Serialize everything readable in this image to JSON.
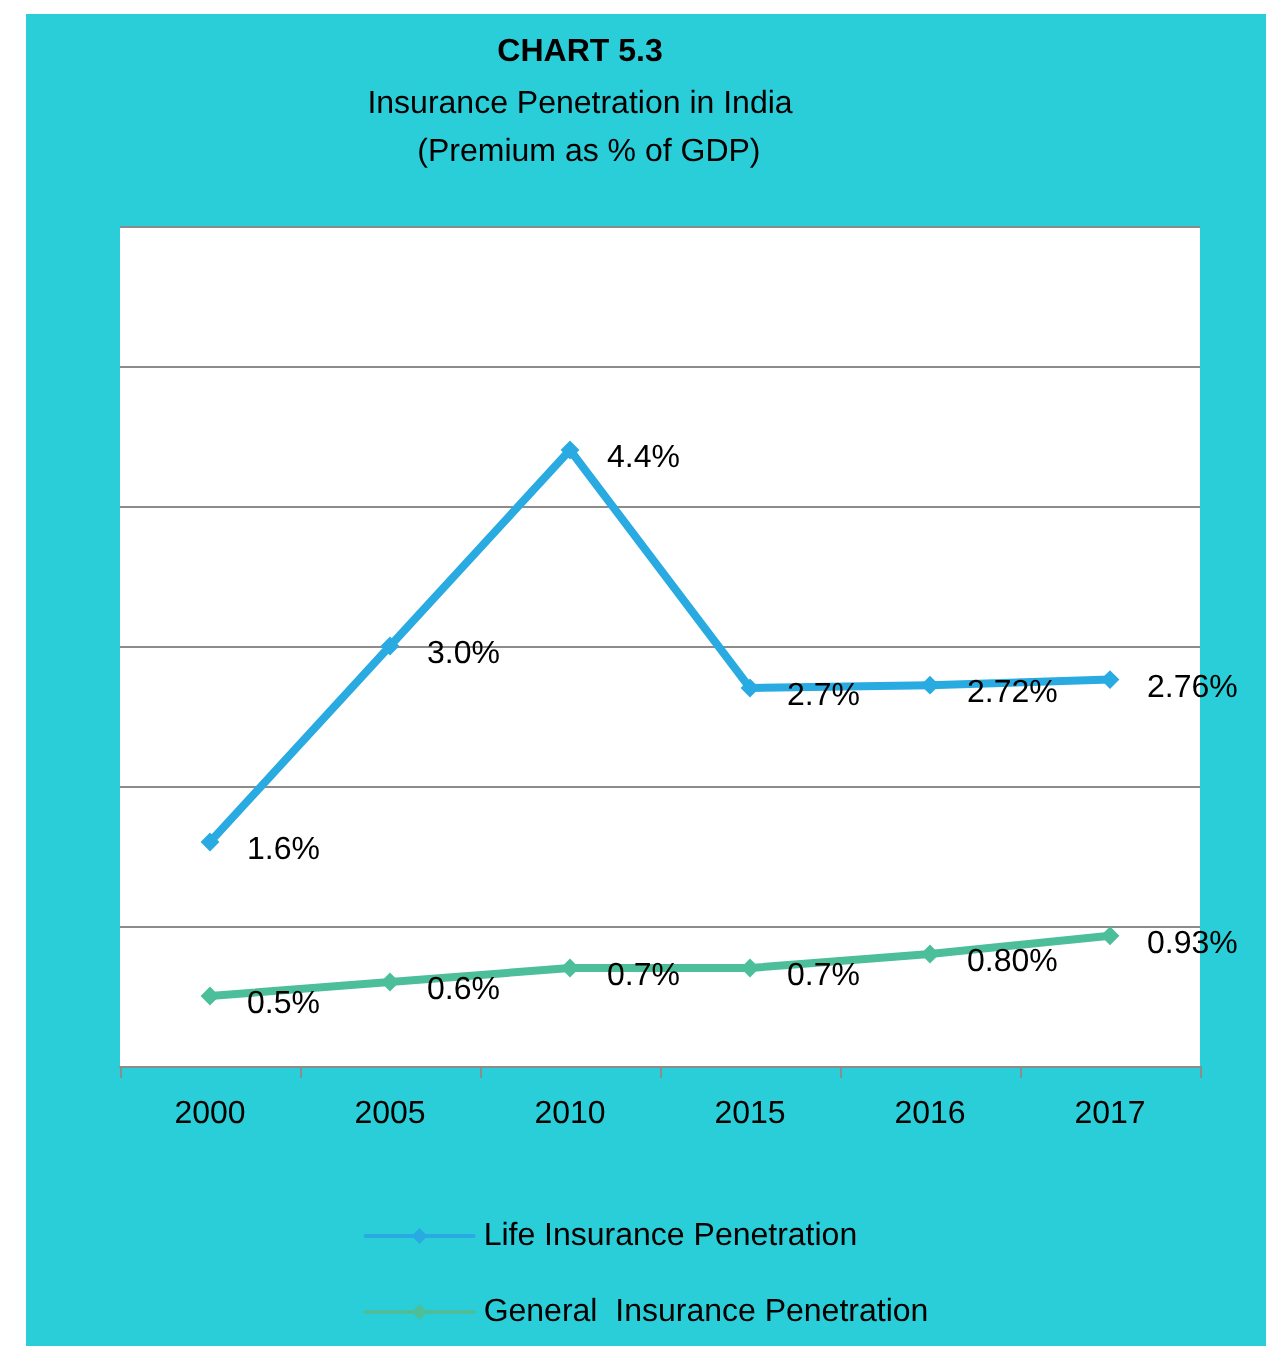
{
  "chart_data": {
    "type": "line",
    "title": "CHART 5.3",
    "subtitle": "Insurance Penetration in India\n  (Premium as % of GDP)",
    "categories": [
      "2000",
      "2005",
      "2010",
      "2015",
      "2016",
      "2017"
    ],
    "series": [
      {
        "name": "Life Insurance Penetration",
        "color": "#29abe2",
        "values": [
          1.6,
          3.0,
          4.4,
          2.7,
          2.72,
          2.76
        ],
        "value_labels": [
          "1.6%",
          "3.0%",
          "4.4%",
          "2.7%",
          "2.72%",
          "2.76%"
        ]
      },
      {
        "name": "General  Insurance Penetration",
        "color": "#4cbf9a",
        "values": [
          0.5,
          0.6,
          0.7,
          0.7,
          0.8,
          0.93
        ],
        "value_labels": [
          "0.5%",
          "0.6%",
          "0.7%",
          "0.7%",
          "0.80%",
          "0.93%"
        ]
      }
    ],
    "ylim": [
      0,
      6
    ],
    "yticks": [
      0,
      1,
      2,
      3,
      4,
      5,
      6
    ],
    "tick_labels": "x",
    "grid": "y",
    "legend": "bottom",
    "marker": "diamond",
    "line_style": "solid"
  }
}
